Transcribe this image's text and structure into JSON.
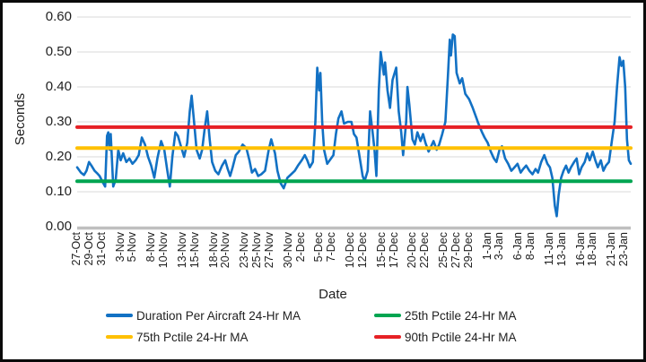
{
  "chart_data": {
    "type": "line",
    "title": "",
    "xlabel": "Date",
    "ylabel": "Seconds",
    "ylim": [
      0,
      0.6
    ],
    "ytick_labels": [
      "0.60",
      "0.50",
      "0.40",
      "0.30",
      "0.20",
      "0.10",
      "0.00"
    ],
    "grid": "horizontal",
    "legend_position": "bottom",
    "x_domain_days": [
      0,
      89
    ],
    "xtick_days": [
      0,
      2,
      4,
      7,
      9,
      12,
      14,
      17,
      19,
      22,
      24,
      27,
      29,
      31,
      34,
      36,
      39,
      41,
      44,
      46,
      49,
      51,
      54,
      56,
      59,
      61,
      63,
      66,
      68,
      71,
      73,
      76,
      78,
      81,
      83,
      86,
      88
    ],
    "xtick_labels": [
      "27-Oct",
      "29-Oct",
      "31-Oct",
      "3-Nov",
      "5-Nov",
      "8-Nov",
      "10-Nov",
      "13-Nov",
      "15-Nov",
      "18-Nov",
      "20-Nov",
      "23-Nov",
      "25-Nov",
      "27-Nov",
      "30-Nov",
      "2-Dec",
      "5-Dec",
      "7-Dec",
      "10-Dec",
      "12-Dec",
      "15-Dec",
      "17-Dec",
      "20-Dec",
      "22-Dec",
      "25-Dec",
      "27-Dec",
      "29-Dec",
      "1-Jan",
      "3-Jan",
      "6-Jan",
      "8-Jan",
      "11-Jan",
      "13-Jan",
      "16-Jan",
      "18-Jan",
      "21-Jan",
      "23-Jan"
    ],
    "series": [
      {
        "name": "Duration Per Aircraft 24-Hr MA",
        "type": "line",
        "color": "#1271C4",
        "points": [
          [
            0,
            0.17
          ],
          [
            0.6,
            0.155
          ],
          [
            1.1,
            0.148
          ],
          [
            1.5,
            0.16
          ],
          [
            1.9,
            0.185
          ],
          [
            2.3,
            0.175
          ],
          [
            2.8,
            0.16
          ],
          [
            3.2,
            0.153
          ],
          [
            3.6,
            0.145
          ],
          [
            4.1,
            0.128
          ],
          [
            4.5,
            0.115
          ],
          [
            4.8,
            0.26
          ],
          [
            5.0,
            0.27
          ],
          [
            5.2,
            0.22
          ],
          [
            5.4,
            0.265
          ],
          [
            5.8,
            0.115
          ],
          [
            6.2,
            0.135
          ],
          [
            6.6,
            0.22
          ],
          [
            7.0,
            0.19
          ],
          [
            7.4,
            0.21
          ],
          [
            7.9,
            0.185
          ],
          [
            8.4,
            0.195
          ],
          [
            8.9,
            0.18
          ],
          [
            9.4,
            0.19
          ],
          [
            9.9,
            0.205
          ],
          [
            10.4,
            0.255
          ],
          [
            10.9,
            0.235
          ],
          [
            11.4,
            0.2
          ],
          [
            11.9,
            0.175
          ],
          [
            12.4,
            0.14
          ],
          [
            12.9,
            0.195
          ],
          [
            13.5,
            0.245
          ],
          [
            14.0,
            0.22
          ],
          [
            14.5,
            0.16
          ],
          [
            14.9,
            0.115
          ],
          [
            15.3,
            0.2
          ],
          [
            15.8,
            0.27
          ],
          [
            16.2,
            0.26
          ],
          [
            16.6,
            0.235
          ],
          [
            17.2,
            0.2
          ],
          [
            17.7,
            0.24
          ],
          [
            18.1,
            0.33
          ],
          [
            18.4,
            0.375
          ],
          [
            18.8,
            0.3
          ],
          [
            19.2,
            0.22
          ],
          [
            19.7,
            0.195
          ],
          [
            20.1,
            0.22
          ],
          [
            20.5,
            0.28
          ],
          [
            20.9,
            0.33
          ],
          [
            21.3,
            0.25
          ],
          [
            21.7,
            0.185
          ],
          [
            22.2,
            0.16
          ],
          [
            22.7,
            0.15
          ],
          [
            23.3,
            0.175
          ],
          [
            23.8,
            0.19
          ],
          [
            24.2,
            0.165
          ],
          [
            24.6,
            0.145
          ],
          [
            25.0,
            0.17
          ],
          [
            25.5,
            0.205
          ],
          [
            26.0,
            0.215
          ],
          [
            26.6,
            0.235
          ],
          [
            27.2,
            0.225
          ],
          [
            27.7,
            0.19
          ],
          [
            28.1,
            0.155
          ],
          [
            28.6,
            0.165
          ],
          [
            29.1,
            0.145
          ],
          [
            29.6,
            0.15
          ],
          [
            30.2,
            0.16
          ],
          [
            30.8,
            0.22
          ],
          [
            31.2,
            0.25
          ],
          [
            31.8,
            0.21
          ],
          [
            32.2,
            0.16
          ],
          [
            32.7,
            0.125
          ],
          [
            33.2,
            0.11
          ],
          [
            33.8,
            0.14
          ],
          [
            34.4,
            0.15
          ],
          [
            35.0,
            0.16
          ],
          [
            35.5,
            0.175
          ],
          [
            36.1,
            0.19
          ],
          [
            36.6,
            0.205
          ],
          [
            37.0,
            0.19
          ],
          [
            37.4,
            0.17
          ],
          [
            37.9,
            0.185
          ],
          [
            38.3,
            0.3
          ],
          [
            38.6,
            0.455
          ],
          [
            38.9,
            0.39
          ],
          [
            39.1,
            0.44
          ],
          [
            39.4,
            0.3
          ],
          [
            39.7,
            0.22
          ],
          [
            40.2,
            0.18
          ],
          [
            40.6,
            0.19
          ],
          [
            41.2,
            0.205
          ],
          [
            41.6,
            0.265
          ],
          [
            42.0,
            0.31
          ],
          [
            42.5,
            0.33
          ],
          [
            42.9,
            0.295
          ],
          [
            43.5,
            0.3
          ],
          [
            44.1,
            0.3
          ],
          [
            44.5,
            0.265
          ],
          [
            44.9,
            0.255
          ],
          [
            45.5,
            0.19
          ],
          [
            45.9,
            0.145
          ],
          [
            46.2,
            0.13
          ],
          [
            46.7,
            0.16
          ],
          [
            47.1,
            0.33
          ],
          [
            47.5,
            0.27
          ],
          [
            47.8,
            0.22
          ],
          [
            48.1,
            0.145
          ],
          [
            48.5,
            0.39
          ],
          [
            48.8,
            0.5
          ],
          [
            49.3,
            0.435
          ],
          [
            49.5,
            0.47
          ],
          [
            49.9,
            0.39
          ],
          [
            50.3,
            0.34
          ],
          [
            50.7,
            0.42
          ],
          [
            51.3,
            0.455
          ],
          [
            51.7,
            0.33
          ],
          [
            52.1,
            0.27
          ],
          [
            52.4,
            0.205
          ],
          [
            52.9,
            0.3
          ],
          [
            53.1,
            0.4
          ],
          [
            53.4,
            0.35
          ],
          [
            53.9,
            0.25
          ],
          [
            54.3,
            0.235
          ],
          [
            54.7,
            0.27
          ],
          [
            55.2,
            0.245
          ],
          [
            55.6,
            0.265
          ],
          [
            56.0,
            0.24
          ],
          [
            56.5,
            0.215
          ],
          [
            56.9,
            0.23
          ],
          [
            57.3,
            0.245
          ],
          [
            57.8,
            0.22
          ],
          [
            58.2,
            0.235
          ],
          [
            58.7,
            0.265
          ],
          [
            59.2,
            0.3
          ],
          [
            59.6,
            0.43
          ],
          [
            59.9,
            0.535
          ],
          [
            60.1,
            0.49
          ],
          [
            60.4,
            0.55
          ],
          [
            60.7,
            0.545
          ],
          [
            61.0,
            0.44
          ],
          [
            61.5,
            0.41
          ],
          [
            61.9,
            0.425
          ],
          [
            62.4,
            0.38
          ],
          [
            63.0,
            0.365
          ],
          [
            63.6,
            0.34
          ],
          [
            64.1,
            0.315
          ],
          [
            64.5,
            0.295
          ],
          [
            65.1,
            0.27
          ],
          [
            65.5,
            0.255
          ],
          [
            66.0,
            0.24
          ],
          [
            66.5,
            0.215
          ],
          [
            67.0,
            0.195
          ],
          [
            67.4,
            0.185
          ],
          [
            67.9,
            0.22
          ],
          [
            68.3,
            0.23
          ],
          [
            68.8,
            0.195
          ],
          [
            69.3,
            0.18
          ],
          [
            69.8,
            0.16
          ],
          [
            70.3,
            0.17
          ],
          [
            70.8,
            0.18
          ],
          [
            71.3,
            0.155
          ],
          [
            71.7,
            0.165
          ],
          [
            72.2,
            0.175
          ],
          [
            72.7,
            0.16
          ],
          [
            73.2,
            0.15
          ],
          [
            73.7,
            0.165
          ],
          [
            74.1,
            0.155
          ],
          [
            74.6,
            0.185
          ],
          [
            75.1,
            0.205
          ],
          [
            75.6,
            0.18
          ],
          [
            76.0,
            0.17
          ],
          [
            76.4,
            0.14
          ],
          [
            76.8,
            0.06
          ],
          [
            77.1,
            0.03
          ],
          [
            77.4,
            0.09
          ],
          [
            77.8,
            0.14
          ],
          [
            78.2,
            0.16
          ],
          [
            78.6,
            0.175
          ],
          [
            79.0,
            0.155
          ],
          [
            79.4,
            0.17
          ],
          [
            79.9,
            0.185
          ],
          [
            80.3,
            0.195
          ],
          [
            80.7,
            0.15
          ],
          [
            81.1,
            0.17
          ],
          [
            81.6,
            0.185
          ],
          [
            82.0,
            0.21
          ],
          [
            82.4,
            0.19
          ],
          [
            82.9,
            0.215
          ],
          [
            83.3,
            0.19
          ],
          [
            83.7,
            0.17
          ],
          [
            84.2,
            0.19
          ],
          [
            84.6,
            0.16
          ],
          [
            85.0,
            0.175
          ],
          [
            85.5,
            0.185
          ],
          [
            86.0,
            0.25
          ],
          [
            86.4,
            0.3
          ],
          [
            86.8,
            0.4
          ],
          [
            87.2,
            0.485
          ],
          [
            87.5,
            0.46
          ],
          [
            87.8,
            0.475
          ],
          [
            88.1,
            0.4
          ],
          [
            88.4,
            0.25
          ],
          [
            88.7,
            0.19
          ],
          [
            89,
            0.18
          ]
        ]
      },
      {
        "name": "25th Pctile 24-Hr MA",
        "type": "hline",
        "color": "#00A551",
        "value": 0.13
      },
      {
        "name": "75th Pctile 24-Hr MA",
        "type": "hline",
        "color": "#FFC000",
        "value": 0.225
      },
      {
        "name": "90th Pctile 24-Hr MA",
        "type": "hline",
        "color": "#E62025",
        "value": 0.285
      }
    ],
    "colors": {
      "grid": "#D9D9D9",
      "zero_axis": "#BFBFBF",
      "text": "#1F1F1F"
    }
  },
  "legend": {
    "items": [
      {
        "series_index": 0
      },
      {
        "series_index": 1
      },
      {
        "series_index": 2
      },
      {
        "series_index": 3
      }
    ]
  }
}
